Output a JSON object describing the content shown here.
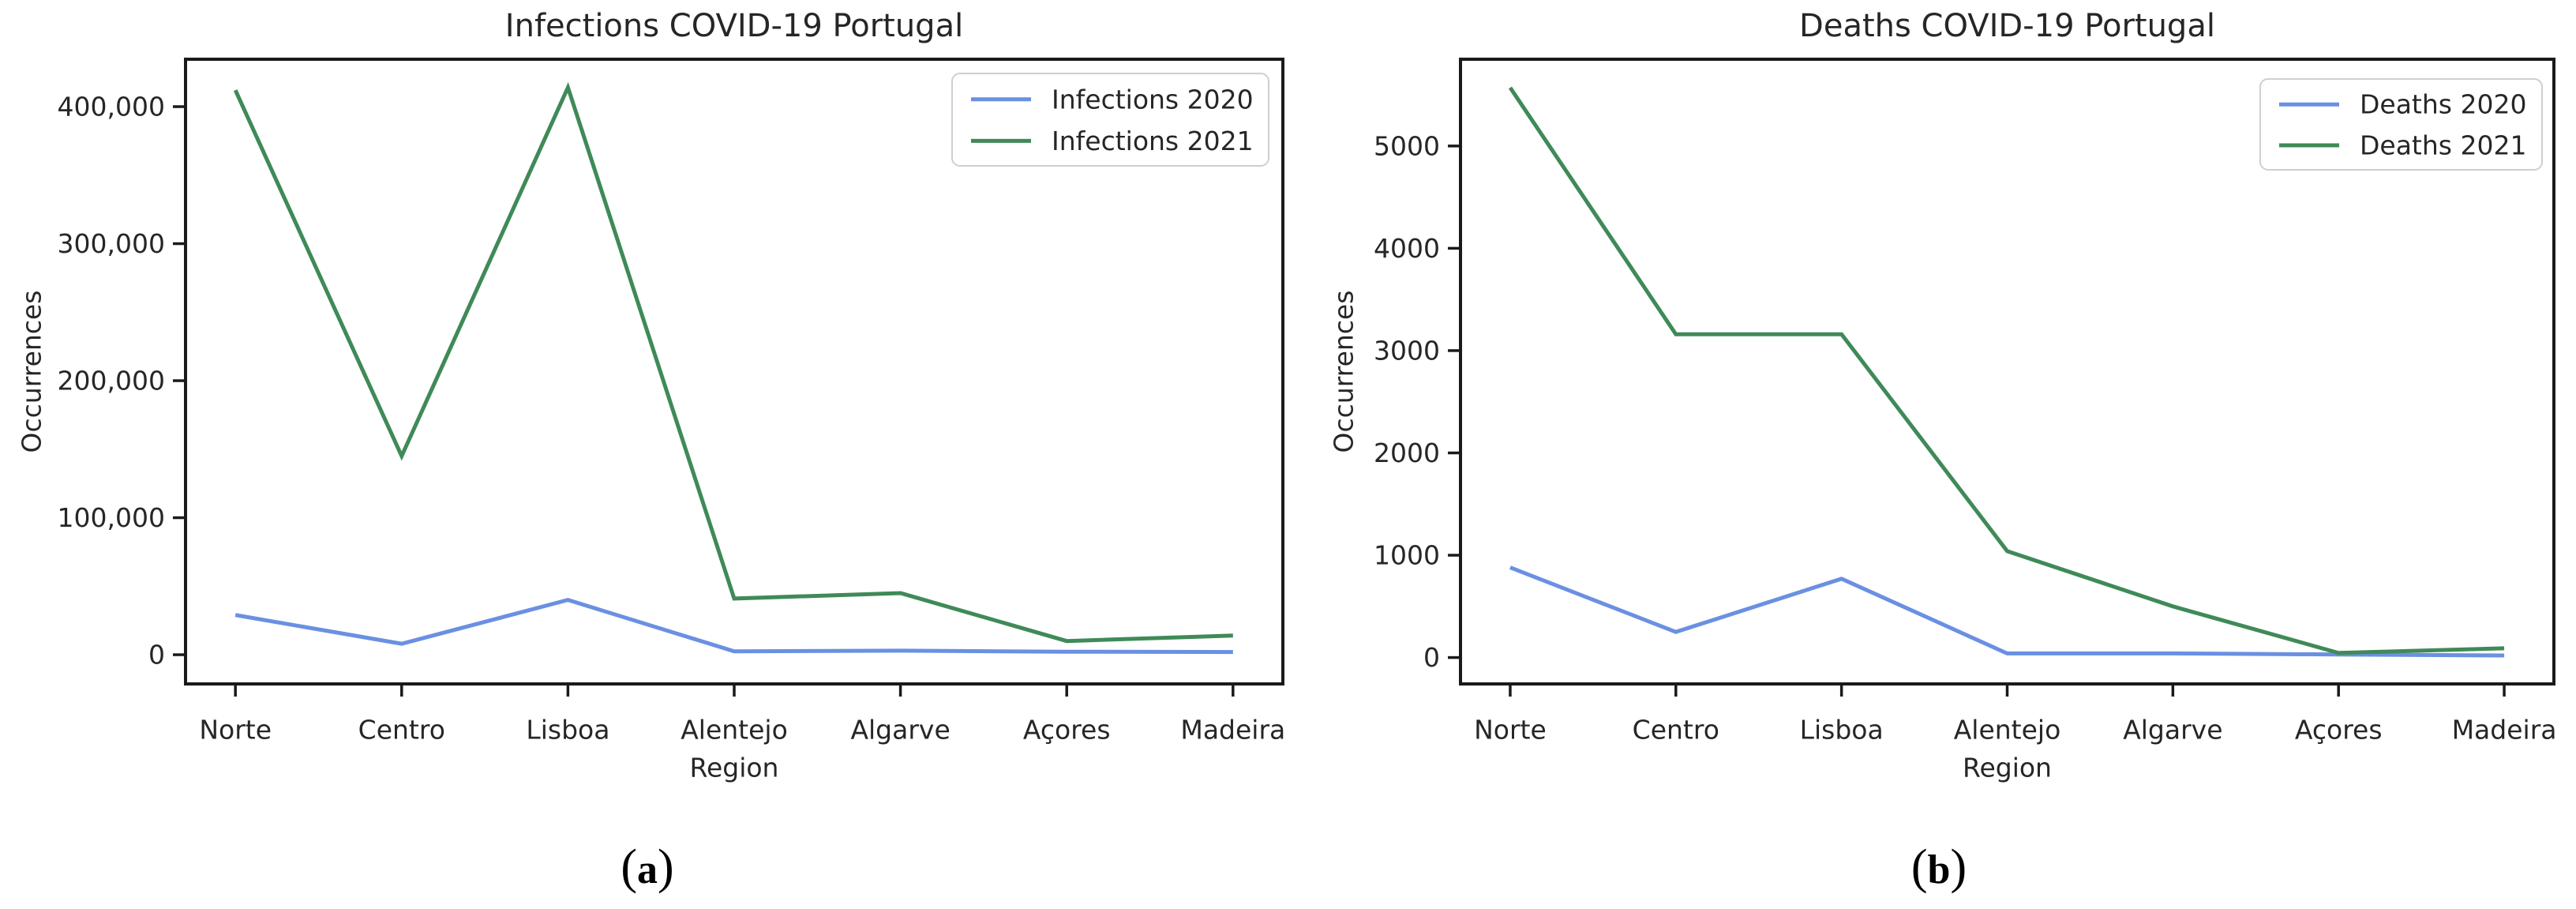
{
  "page": {
    "background": "#ffffff",
    "figure_captions": [
      "(a)",
      "(b)"
    ]
  },
  "colors": {
    "series_2020": "#6a90e2",
    "series_2021": "#3f8a58",
    "axis": "#1a1a1a",
    "text": "#262626",
    "legend_border": "#cfcfcf",
    "legend_fill": "#ffffff"
  },
  "chart_data": [
    {
      "type": "line",
      "title": "Infections COVID-19 Portugal",
      "xlabel": "Region",
      "ylabel": "Occurrences",
      "caption": "(a)",
      "caption_letter": "a",
      "categories": [
        "Norte",
        "Centro",
        "Lisboa",
        "Alentejo",
        "Algarve",
        "Açores",
        "Madeira"
      ],
      "series": [
        {
          "name": "Infections 2020",
          "color": "#6a90e2",
          "values": [
            29000,
            8000,
            40000,
            2500,
            3000,
            2200,
            2000
          ]
        },
        {
          "name": "Infections 2021",
          "color": "#3f8a58",
          "values": [
            412000,
            145000,
            414000,
            41000,
            45000,
            10000,
            14000
          ]
        }
      ],
      "ylim": [
        -21300,
        434600
      ],
      "yticks": [
        {
          "value": 0,
          "label": "0"
        },
        {
          "value": 100000,
          "label": "100,000"
        },
        {
          "value": 200000,
          "label": "200,000"
        },
        {
          "value": 300000,
          "label": "300,000"
        },
        {
          "value": 400000,
          "label": "400,000"
        }
      ],
      "grid": false,
      "legend_position": "upper right"
    },
    {
      "type": "line",
      "title": "Deaths COVID-19 Portugal",
      "xlabel": "Region",
      "ylabel": "Occurrences",
      "caption": "(b)",
      "caption_letter": "b",
      "categories": [
        "Norte",
        "Centro",
        "Lisboa",
        "Alentejo",
        "Algarve",
        "Açores",
        "Madeira"
      ],
      "series": [
        {
          "name": "Deaths 2020",
          "color": "#6a90e2",
          "values": [
            880,
            250,
            770,
            40,
            40,
            30,
            20
          ]
        },
        {
          "name": "Deaths 2021",
          "color": "#3f8a58",
          "values": [
            5570,
            3160,
            3160,
            1040,
            500,
            45,
            90
          ]
        }
      ],
      "ylim": [
        -258,
        5848
      ],
      "yticks": [
        {
          "value": 0,
          "label": "0"
        },
        {
          "value": 1000,
          "label": "1000"
        },
        {
          "value": 2000,
          "label": "2000"
        },
        {
          "value": 3000,
          "label": "3000"
        },
        {
          "value": 4000,
          "label": "4000"
        },
        {
          "value": 5000,
          "label": "5000"
        }
      ],
      "grid": false,
      "legend_position": "upper right"
    }
  ]
}
